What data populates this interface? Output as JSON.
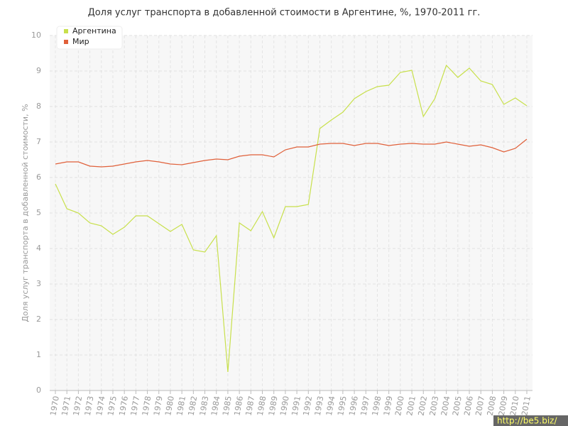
{
  "chart_data": {
    "type": "line",
    "title": "Доля услуг транспорта в добавленной стоимости в Аргентине, %, 1970-2011 гг.",
    "y_label": "Доля услуг транспорта в добавленной стоимости, %",
    "categories": [
      "1970",
      "1971",
      "1972",
      "1973",
      "1974",
      "1975",
      "1976",
      "1977",
      "1978",
      "1979",
      "1980",
      "1981",
      "1982",
      "1983",
      "1984",
      "1985",
      "1986",
      "1987",
      "1988",
      "1989",
      "1990",
      "1991",
      "1992",
      "1993",
      "1994",
      "1995",
      "1996",
      "1997",
      "1998",
      "1999",
      "2000",
      "2001",
      "2002",
      "2003",
      "2004",
      "2005",
      "2006",
      "2007",
      "2008",
      "2009",
      "2010",
      "2011"
    ],
    "series": [
      {
        "name": "Аргентина",
        "color": "#c8e04c",
        "values": [
          5.82,
          5.12,
          5.0,
          4.72,
          4.64,
          4.4,
          4.6,
          4.92,
          4.92,
          4.7,
          4.48,
          4.68,
          3.96,
          3.9,
          4.36,
          0.52,
          4.72,
          4.5,
          5.04,
          4.3,
          5.18,
          5.18,
          5.24,
          7.38,
          7.62,
          7.84,
          8.22,
          8.42,
          8.56,
          8.6,
          8.96,
          9.02,
          7.72,
          8.22,
          9.16,
          8.82,
          9.08,
          8.72,
          8.62,
          8.06,
          8.24,
          8.02
        ]
      },
      {
        "name": "Мир",
        "color": "#e0603a",
        "values": [
          6.38,
          6.44,
          6.44,
          6.32,
          6.3,
          6.32,
          6.38,
          6.44,
          6.48,
          6.44,
          6.38,
          6.36,
          6.42,
          6.48,
          6.52,
          6.5,
          6.6,
          6.64,
          6.64,
          6.58,
          6.78,
          6.86,
          6.86,
          6.94,
          6.96,
          6.96,
          6.9,
          6.96,
          6.96,
          6.9,
          6.94,
          6.96,
          6.94,
          6.94,
          7.0,
          6.94,
          6.88,
          6.92,
          6.84,
          6.72,
          6.82,
          7.08
        ]
      }
    ],
    "ylim": [
      0,
      10
    ],
    "yticks": [
      0,
      1,
      2,
      3,
      4,
      5,
      6,
      7,
      8,
      9,
      10
    ],
    "grid": true,
    "legend": "top-left",
    "watermark": "http://be5.biz/"
  }
}
